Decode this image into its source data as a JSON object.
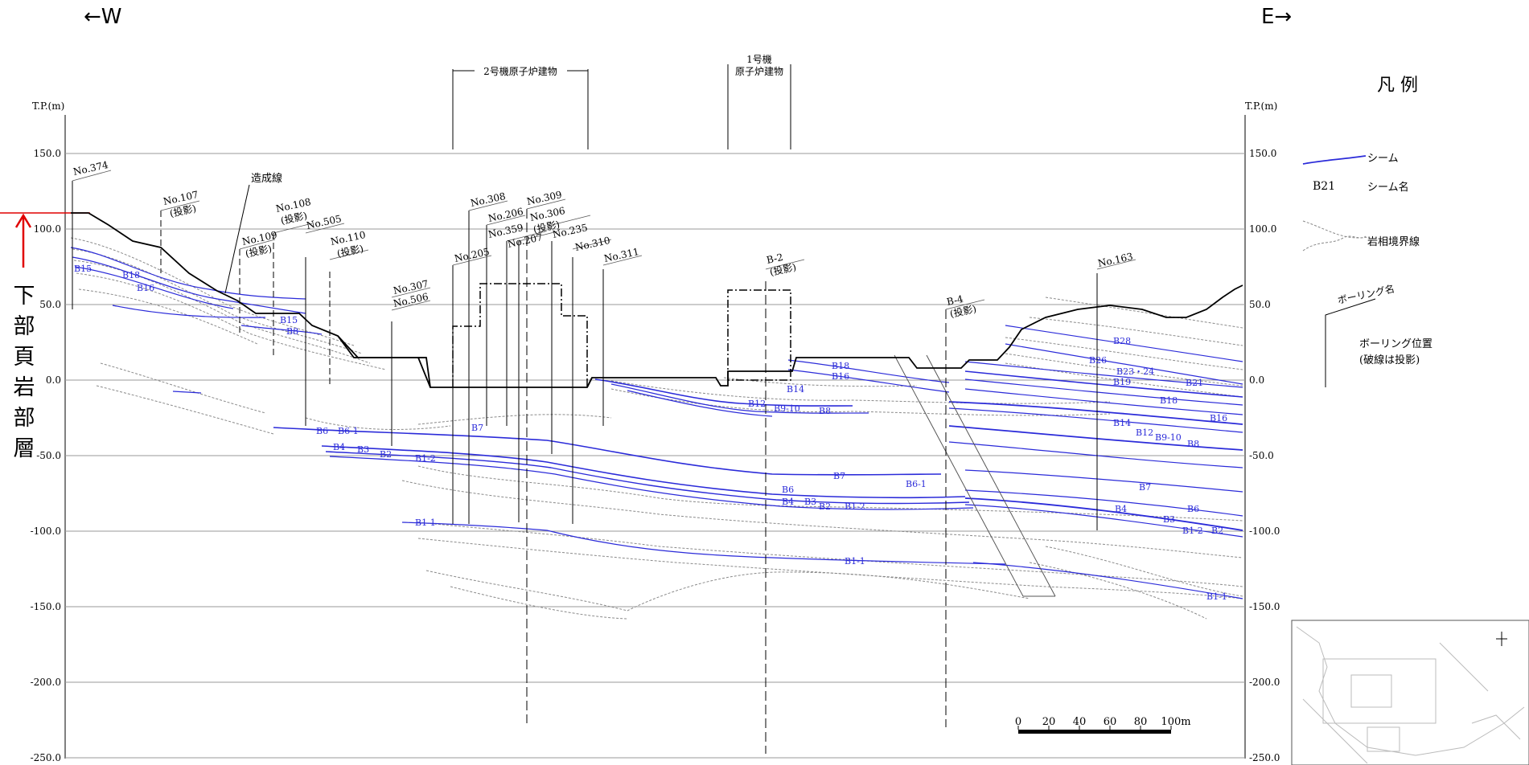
{
  "header": {
    "west": "←W",
    "east": "E→"
  },
  "side_label": "下部頁岩部層",
  "axis": {
    "unit": "T.P.(m)",
    "ticks": [
      "150.0",
      "100.0",
      "50.0",
      "0.0",
      "-50.0",
      "-100.0",
      "-150.0",
      "-200.0",
      "-250.0"
    ]
  },
  "buildings": {
    "unit2": "2号機原子炉建物",
    "unit1_line1": "1号機",
    "unit1_line2": "原子炉建物"
  },
  "annotations": {
    "fill_line": "造成線"
  },
  "boreholes": [
    {
      "name": "No.374"
    },
    {
      "name": "No.107",
      "note": "(投影)"
    },
    {
      "name": "No.109",
      "note": "(投影)"
    },
    {
      "name": "No.108",
      "note": "(投影)"
    },
    {
      "name": "No.505"
    },
    {
      "name": "No.110",
      "note": "(投影)"
    },
    {
      "name": "No.307"
    },
    {
      "name": "No.506"
    },
    {
      "name": "No.205"
    },
    {
      "name": "No.308"
    },
    {
      "name": "No.206"
    },
    {
      "name": "No.359"
    },
    {
      "name": "No.207"
    },
    {
      "name": "No.309"
    },
    {
      "name": "No.306",
      "note": "(投影)"
    },
    {
      "name": "No.235"
    },
    {
      "name": "No.310"
    },
    {
      "name": "No.311"
    },
    {
      "name": "B-2",
      "note": "(投影)"
    },
    {
      "name": "B-4",
      "note": "(投影)"
    },
    {
      "name": "No.163"
    }
  ],
  "seam_labels": [
    "B15",
    "B18",
    "B16",
    "B15",
    "B8",
    "B6",
    "B6-1",
    "B4",
    "B3",
    "B2",
    "B1-2",
    "B7",
    "B1-1",
    "B18",
    "B16",
    "B14",
    "B12",
    "B9-10",
    "B8",
    "B7",
    "B6",
    "B4",
    "B3",
    "B2",
    "B1-2",
    "B6-1",
    "B1-1",
    "B28",
    "B26",
    "B23・24",
    "B19",
    "B21",
    "B18",
    "B16",
    "B14",
    "B12",
    "B9-10",
    "B8",
    "B7",
    "B6",
    "B4",
    "B3",
    "B1-2",
    "B2",
    "B1-1"
  ],
  "scale": {
    "ticks": [
      "0",
      "20",
      "40",
      "60",
      "80",
      "100m"
    ]
  },
  "legend": {
    "title": "凡 例",
    "seam": "シーム",
    "seam_name_sample": "B21",
    "seam_name": "シーム名",
    "lithology_boundary": "岩相境界線",
    "boring_name": "ボーリング名",
    "boring_position_1": "ボーリング位置",
    "boring_position_2": "(破線は投影)"
  },
  "colors": {
    "seam": "#2b2bd9",
    "boundary": "#888888",
    "ground": "#000000",
    "marker": "#e00000",
    "grid": "#9a9a9a"
  }
}
